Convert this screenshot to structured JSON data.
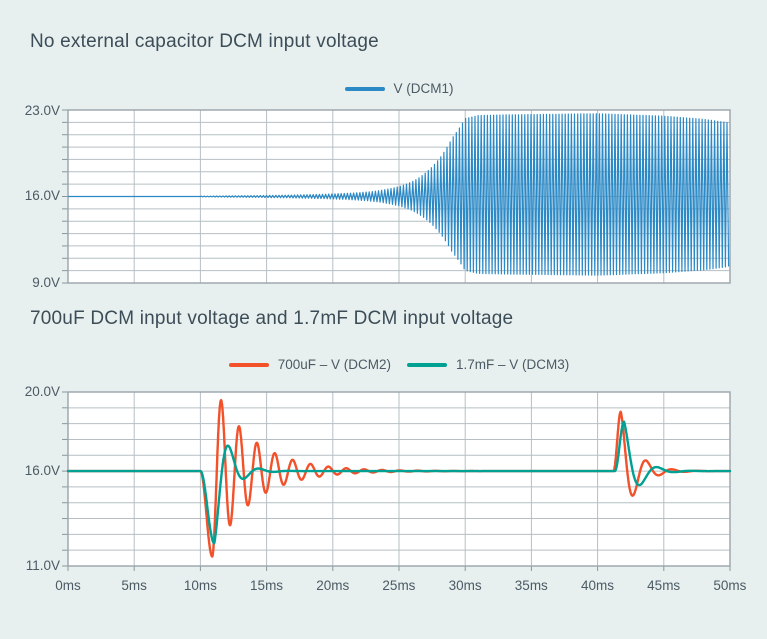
{
  "page": {
    "background_color": "#e7f0ef",
    "text_color": "#3d4d58",
    "grid_color": "#b6bfc4",
    "plot_border_color": "#99a4ab"
  },
  "chart_data": [
    {
      "type": "line",
      "title": "No external capacitor DCM input voltage",
      "legend": [
        {
          "label": "V (DCM1)",
          "color": "#2b89c6"
        }
      ],
      "legend_position": "top-center",
      "grid": true,
      "xlabel": "",
      "ylabel": "",
      "x_range_ms": [
        0,
        50
      ],
      "x_divisions": 10,
      "x_tick_labels": [],
      "y_range_V": [
        9,
        23
      ],
      "y_divisions": 14,
      "y_tick_labels": [
        "23.0V",
        "16.0V",
        "9.0V"
      ],
      "y_tick_values": [
        23,
        16,
        9
      ],
      "series": [
        {
          "name": "V (DCM1)",
          "color": "#2b89c6",
          "description": "16 V rail with growing oscillation beginning ~10 ms, reaching a sustained limit cycle of roughly 9.7 V to 22.7 V from ~30 ms to 50 ms",
          "base_V": 16,
          "oscillation_start_ms": 10,
          "oscillation_period_ms": 0.235,
          "envelope_asymmetry": {
            "top": 1.0,
            "bottom": 0.95
          },
          "envelope_keypoints_ms_V": [
            [
              10,
              0.03
            ],
            [
              13,
              0.06
            ],
            [
              16,
              0.1
            ],
            [
              19,
              0.17
            ],
            [
              21,
              0.25
            ],
            [
              23,
              0.4
            ],
            [
              25,
              0.8
            ],
            [
              26,
              1.2
            ],
            [
              27,
              1.9
            ],
            [
              28,
              3.0
            ],
            [
              29,
              4.7
            ],
            [
              30,
              6.3
            ],
            [
              31,
              6.55
            ],
            [
              33,
              6.6
            ],
            [
              40,
              6.7
            ],
            [
              45,
              6.5
            ],
            [
              48,
              6.25
            ],
            [
              50,
              5.95
            ]
          ]
        }
      ]
    },
    {
      "type": "line",
      "title": "700uF DCM input voltage and 1.7mF DCM input voltage",
      "legend": [
        {
          "label": "700uF – V (DCM2)",
          "color": "#f3512a"
        },
        {
          "label": "1.7mF – V (DCM3)",
          "color": "#00a092"
        }
      ],
      "legend_position": "top-center",
      "grid": true,
      "xlabel": "",
      "ylabel": "",
      "x_range_ms": [
        0,
        50
      ],
      "x_divisions": 10,
      "x_tick_labels": [
        "0ms",
        "5ms",
        "10ms",
        "15ms",
        "20ms",
        "25ms",
        "30ms",
        "35ms",
        "40ms",
        "45ms",
        "50ms"
      ],
      "y_range_V": [
        11,
        20
      ],
      "y_divisions": 11,
      "y_divisions_above_16V": 5,
      "y_tick_labels": [
        "20.0V",
        "16.0V",
        "11.0V"
      ],
      "y_tick_values": [
        20,
        16,
        11
      ],
      "series": [
        {
          "name": "700uF – V (DCM2)",
          "color": "#f3512a",
          "base_V": 16,
          "events": [
            {
              "type": "dip",
              "start_ms": 10,
              "extreme_ms": 10.9,
              "extreme_V": 11.5,
              "ring": {
                "amplitude_V": 4.5,
                "decay_per_ms": 0.34,
                "period_ms": 1.35
              }
            },
            {
              "type": "rise",
              "start_ms": 41.2,
              "extreme_ms": 41.75,
              "extreme_V": 19.0,
              "ring": {
                "amplitude_V": 3.0,
                "decay_per_ms": 0.9,
                "period_ms": 1.95
              }
            }
          ],
          "keypoints_ms_V": [
            [
              0,
              16
            ],
            [
              10,
              16
            ],
            [
              10.9,
              11.5
            ],
            [
              11.6,
              19.5
            ],
            [
              12.3,
              12.9
            ],
            [
              13.0,
              18.1
            ],
            [
              13.7,
              13.8
            ],
            [
              14.4,
              17.4
            ],
            [
              20,
              16.1
            ],
            [
              27,
              16
            ],
            [
              41.2,
              16
            ],
            [
              41.75,
              19.0
            ],
            [
              42.75,
              14.8
            ],
            [
              43.7,
              16.5
            ],
            [
              50,
              16
            ]
          ]
        },
        {
          "name": "1.7mF – V (DCM3)",
          "color": "#00a092",
          "base_V": 16,
          "events": [
            {
              "type": "dip",
              "start_ms": 10,
              "extreme_ms": 11.05,
              "extreme_V": 12.2,
              "ring": {
                "amplitude_V": 3.8,
                "decay_per_ms": 1.0,
                "period_ms": 2.3
              }
            },
            {
              "type": "rise",
              "start_ms": 41.3,
              "extreme_ms": 42.0,
              "extreme_V": 18.5,
              "ring": {
                "amplitude_V": 2.5,
                "decay_per_ms": 1.0,
                "period_ms": 2.6
              }
            }
          ],
          "keypoints_ms_V": [
            [
              0,
              16
            ],
            [
              10,
              16
            ],
            [
              11.05,
              12.2
            ],
            [
              12.2,
              17.2
            ],
            [
              13.35,
              15.6
            ],
            [
              16,
              16
            ],
            [
              41.3,
              16
            ],
            [
              42.0,
              18.5
            ],
            [
              43.3,
              15.4
            ],
            [
              50,
              16
            ]
          ]
        }
      ]
    }
  ]
}
